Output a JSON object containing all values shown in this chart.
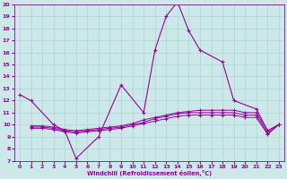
{
  "xlabel": "Windchill (Refroidissement éolien,°C)",
  "xlim": [
    -0.5,
    23.5
  ],
  "ylim": [
    7,
    20
  ],
  "yticks": [
    7,
    8,
    9,
    10,
    11,
    12,
    13,
    14,
    15,
    16,
    17,
    18,
    19,
    20
  ],
  "xticks": [
    0,
    1,
    2,
    3,
    4,
    5,
    6,
    7,
    8,
    9,
    10,
    11,
    12,
    13,
    14,
    15,
    16,
    17,
    18,
    19,
    20,
    21,
    22,
    23
  ],
  "bg_color": "#cce8e8",
  "grid_color": "#aad4d4",
  "line_color": "#990099",
  "main_x": [
    0,
    1,
    3,
    4,
    5,
    7,
    9,
    11,
    12,
    13,
    14,
    15,
    16,
    18,
    19,
    21,
    22,
    23
  ],
  "main_y": [
    12.5,
    12.0,
    10.0,
    9.5,
    7.2,
    9.0,
    13.3,
    11.0,
    16.2,
    19.0,
    20.2,
    17.8,
    16.2,
    15.2,
    12.0,
    11.3,
    9.5,
    10.0
  ],
  "flat1_x": [
    1,
    2,
    3,
    4,
    5,
    6,
    7,
    8,
    9,
    10,
    11,
    12,
    13,
    14,
    15,
    16,
    17,
    18,
    19,
    20,
    21,
    22,
    23
  ],
  "flat1_y": [
    9.9,
    9.9,
    9.8,
    9.6,
    9.5,
    9.6,
    9.7,
    9.8,
    9.9,
    10.1,
    10.4,
    10.6,
    10.8,
    11.0,
    11.1,
    11.2,
    11.2,
    11.2,
    11.2,
    11.0,
    11.0,
    9.5,
    10.0
  ],
  "flat2_x": [
    1,
    2,
    3,
    4,
    5,
    6,
    7,
    8,
    9,
    10,
    11,
    12,
    13,
    14,
    15,
    16,
    17,
    18,
    19,
    20,
    21,
    22,
    23
  ],
  "flat2_y": [
    9.8,
    9.8,
    9.7,
    9.5,
    9.4,
    9.5,
    9.6,
    9.7,
    9.8,
    10.0,
    10.2,
    10.5,
    10.7,
    10.9,
    11.0,
    11.0,
    11.0,
    11.0,
    11.0,
    10.8,
    10.8,
    9.3,
    10.0
  ],
  "flat3_x": [
    1,
    2,
    3,
    4,
    5,
    6,
    7,
    8,
    9,
    10,
    11,
    12,
    13,
    14,
    15,
    16,
    17,
    18,
    19,
    20,
    21,
    22,
    23
  ],
  "flat3_y": [
    9.7,
    9.7,
    9.6,
    9.4,
    9.3,
    9.4,
    9.5,
    9.6,
    9.7,
    9.9,
    10.1,
    10.3,
    10.5,
    10.7,
    10.8,
    10.8,
    10.8,
    10.8,
    10.8,
    10.6,
    10.6,
    9.2,
    10.0
  ]
}
